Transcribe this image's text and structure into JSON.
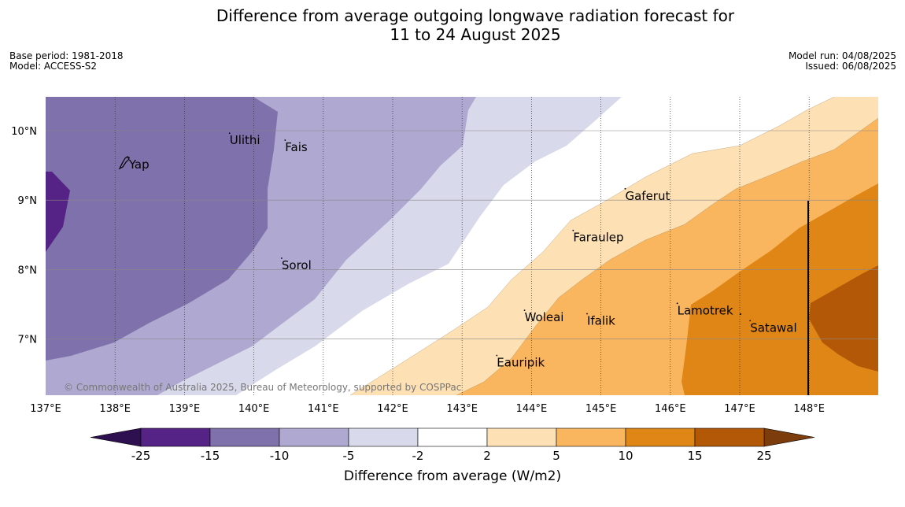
{
  "title": {
    "line1": "Difference from average outgoing longwave radiation forecast for",
    "line2": "11 to 24 August 2025"
  },
  "meta": {
    "base_period": "Base period: 1981-2018",
    "model": "Model: ACCESS-S2",
    "model_run": "Model run: 04/08/2025",
    "issued": "Issued: 06/08/2025"
  },
  "map": {
    "lon_range": [
      137,
      149
    ],
    "lat_range": [
      6.2,
      10.5
    ],
    "lon_ticks": [
      {
        "v": 137,
        "label": "137°E"
      },
      {
        "v": 138,
        "label": "138°E"
      },
      {
        "v": 139,
        "label": "139°E"
      },
      {
        "v": 140,
        "label": "140°E"
      },
      {
        "v": 141,
        "label": "141°E"
      },
      {
        "v": 142,
        "label": "142°E"
      },
      {
        "v": 143,
        "label": "143°E"
      },
      {
        "v": 144,
        "label": "144°E"
      },
      {
        "v": 145,
        "label": "145°E"
      },
      {
        "v": 146,
        "label": "146°E"
      },
      {
        "v": 147,
        "label": "147°E"
      },
      {
        "v": 148,
        "label": "148°E"
      }
    ],
    "lat_ticks": [
      {
        "v": 7,
        "label": "7°N"
      },
      {
        "v": 8,
        "label": "8°N"
      },
      {
        "v": 9,
        "label": "9°N"
      },
      {
        "v": 10,
        "label": "10°N"
      }
    ],
    "places": [
      {
        "name": "Yap",
        "lon": 138.2,
        "lat": 9.5
      },
      {
        "name": "Ulithi",
        "lon": 139.65,
        "lat": 9.85
      },
      {
        "name": "Fais",
        "lon": 140.45,
        "lat": 9.75
      },
      {
        "name": "Sorol",
        "lon": 140.4,
        "lat": 8.05
      },
      {
        "name": "Gaferut",
        "lon": 145.35,
        "lat": 9.05
      },
      {
        "name": "Faraulep",
        "lon": 144.6,
        "lat": 8.45
      },
      {
        "name": "Woleai",
        "lon": 143.9,
        "lat": 7.3
      },
      {
        "name": "Ifalik",
        "lon": 144.8,
        "lat": 7.25
      },
      {
        "name": "Lamotrek",
        "lon": 146.1,
        "lat": 7.4
      },
      {
        "name": "Satawal",
        "lon": 147.15,
        "lat": 7.15
      },
      {
        "name": "Eauripik",
        "lon": 143.5,
        "lat": 6.65
      }
    ],
    "copyright": "© Commonwealth of Australia 2025, Bureau of Meteorology, supported by COSPPac"
  },
  "colorbar": {
    "title": "Difference from average (W/m2)",
    "levels": [
      "-25",
      "-15",
      "-10",
      "-5",
      "-2",
      "2",
      "5",
      "10",
      "15",
      "25"
    ],
    "colors": {
      "below_-25": "#2e0f4f",
      "-25_to_-15": "#552285",
      "-15_to_-10": "#7f71ab",
      "-10_to_-5": "#afa9d1",
      "-5_to_-2": "#d8d9ea",
      "-2_to_2": "#ffffff",
      "2_to_5": "#fde0b3",
      "5_to_10": "#fab55f",
      "10_to_15": "#e08616",
      "15_to_25": "#b35807",
      "above_25": "#7d3c0b"
    }
  }
}
